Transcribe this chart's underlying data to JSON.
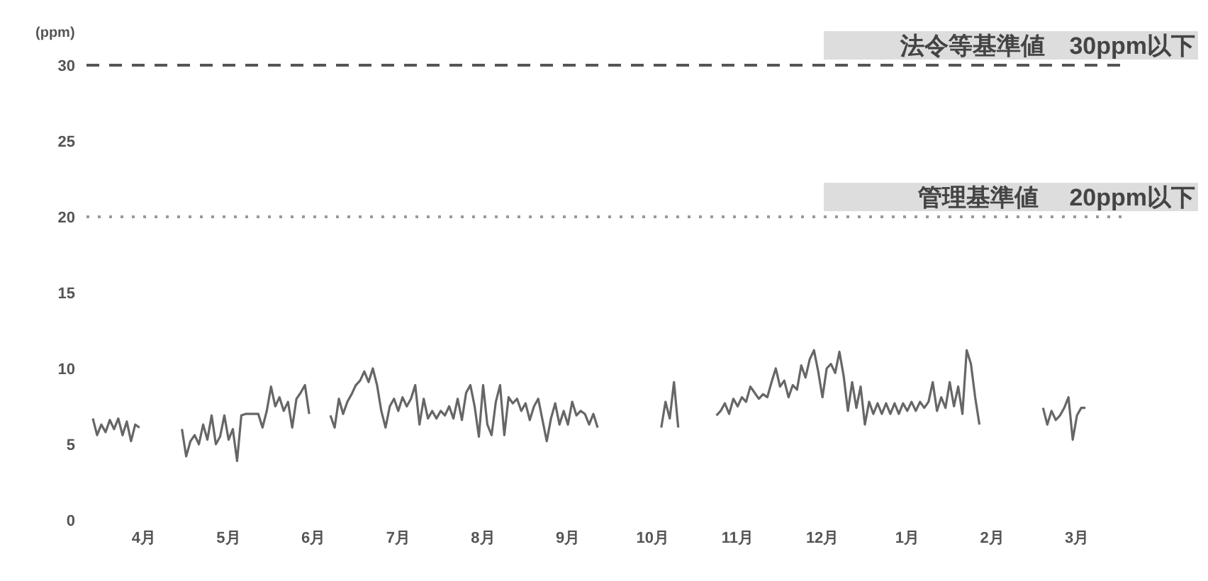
{
  "chart_data": {
    "type": "line",
    "ylabel": "(ppm)",
    "categories": [
      null,
      null,
      null,
      null,
      null,
      null,
      null,
      null,
      null,
      null,
      null,
      null,
      null,
      "4月",
      null,
      null,
      null,
      null,
      null,
      null,
      null,
      null,
      null,
      null,
      null,
      null,
      null,
      null,
      null,
      null,
      null,
      null,
      null,
      "5月",
      null,
      null,
      null,
      null,
      null,
      null,
      null,
      null,
      null,
      null,
      null,
      null,
      null,
      null,
      null,
      null,
      null,
      null,
      null,
      "6月",
      null,
      null,
      null,
      null,
      null,
      null,
      null,
      null,
      null,
      null,
      null,
      null,
      null,
      null,
      null,
      null,
      null,
      null,
      null,
      "7月",
      null,
      null,
      null,
      null,
      null,
      null,
      null,
      null,
      null,
      null,
      null,
      null,
      null,
      null,
      null,
      null,
      null,
      null,
      null,
      "8月",
      null,
      null,
      null,
      null,
      null,
      null,
      null,
      null,
      null,
      null,
      null,
      null,
      null,
      null,
      null,
      null,
      null,
      null,
      null,
      "9月",
      null,
      null,
      null,
      null,
      null,
      null,
      null,
      null,
      null,
      null,
      null,
      null,
      null,
      null,
      null,
      null,
      null,
      null,
      null,
      "10月",
      null,
      null,
      null,
      null,
      null,
      null,
      null,
      null,
      null,
      null,
      null,
      null,
      null,
      null,
      null,
      null,
      null,
      null,
      null,
      "11月",
      null,
      null,
      null,
      null,
      null,
      null,
      null,
      null,
      null,
      null,
      null,
      null,
      null,
      null,
      null,
      null,
      null,
      null,
      null,
      "12月",
      null,
      null,
      null,
      null,
      null,
      null,
      null,
      null,
      null,
      null,
      null,
      null,
      null,
      null,
      null,
      null,
      null,
      null,
      null,
      "1月",
      null,
      null,
      null,
      null,
      null,
      null,
      null,
      null,
      null,
      null,
      null,
      null,
      null,
      null,
      null,
      null,
      null,
      null,
      null,
      "2月",
      null,
      null,
      null,
      null,
      null,
      null,
      null,
      null,
      null,
      null,
      null,
      null,
      null,
      null,
      null,
      null,
      null,
      null,
      null,
      "3月",
      null,
      null,
      null,
      null,
      null,
      null,
      null,
      null,
      null,
      null
    ],
    "series": [
      {
        "color": "#666666",
        "values": [
          null,
          6.7,
          5.6,
          6.3,
          5.8,
          6.6,
          6.0,
          6.7,
          5.6,
          6.5,
          5.2,
          6.3,
          6.1,
          null,
          null,
          null,
          null,
          null,
          null,
          null,
          null,
          null,
          6.0,
          4.2,
          5.2,
          5.6,
          5.0,
          6.3,
          5.3,
          6.9,
          5.0,
          5.5,
          6.9,
          5.3,
          6.0,
          3.9,
          6.9,
          7.0,
          7.0,
          7.0,
          7.0,
          6.1,
          7.2,
          8.8,
          7.5,
          8.1,
          7.2,
          7.8,
          6.1,
          8.0,
          8.4,
          8.9,
          7.0,
          null,
          null,
          null,
          null,
          6.9,
          6.1,
          8.0,
          7.0,
          7.8,
          8.3,
          8.9,
          9.2,
          9.8,
          9.1,
          10.0,
          8.9,
          7.2,
          6.1,
          7.5,
          8.0,
          7.2,
          8.1,
          7.5,
          8.0,
          8.9,
          6.3,
          8.0,
          6.7,
          7.2,
          6.7,
          7.2,
          6.9,
          7.5,
          6.7,
          8.0,
          6.6,
          8.4,
          8.9,
          7.5,
          5.5,
          8.9,
          6.3,
          5.6,
          7.8,
          8.9,
          5.6,
          8.1,
          7.7,
          8.0,
          7.2,
          7.7,
          6.6,
          7.5,
          8.0,
          6.6,
          5.2,
          6.7,
          7.7,
          6.3,
          7.2,
          6.3,
          7.8,
          6.9,
          7.2,
          7.0,
          6.3,
          7.0,
          6.1,
          null,
          null,
          null,
          null,
          null,
          null,
          null,
          null,
          null,
          null,
          null,
          null,
          null,
          null,
          6.1,
          7.8,
          6.7,
          9.1,
          6.1,
          null,
          null,
          null,
          null,
          null,
          null,
          null,
          null,
          6.9,
          7.2,
          7.7,
          7.0,
          8.0,
          7.5,
          8.1,
          7.8,
          8.8,
          8.4,
          8.0,
          8.3,
          8.1,
          9.1,
          10.0,
          8.8,
          9.2,
          8.1,
          8.9,
          8.6,
          10.2,
          9.4,
          10.6,
          11.2,
          9.8,
          8.1,
          10.0,
          10.3,
          9.7,
          11.1,
          9.5,
          7.2,
          9.1,
          7.4,
          8.8,
          6.3,
          7.8,
          7.0,
          7.7,
          7.0,
          7.7,
          7.0,
          7.7,
          7.0,
          7.7,
          7.2,
          7.8,
          7.2,
          7.8,
          7.4,
          7.8,
          9.1,
          7.2,
          8.1,
          7.4,
          9.1,
          7.5,
          8.8,
          7.0,
          11.2,
          10.3,
          8.1,
          6.3,
          null,
          null,
          null,
          null,
          null,
          null,
          null,
          null,
          null,
          null,
          null,
          null,
          null,
          null,
          7.4,
          6.3,
          7.2,
          6.6,
          6.9,
          7.4,
          8.1,
          5.3,
          6.9,
          7.4,
          7.4,
          null,
          null,
          null,
          null,
          null,
          null,
          null,
          null
        ]
      }
    ],
    "ylim": [
      0,
      30
    ],
    "yticks": [
      0,
      5,
      10,
      15,
      20,
      25,
      30
    ],
    "ref_lines": [
      {
        "axis": "y",
        "value": 30,
        "label": "法令等基準値　30ppm以下",
        "color": "#555555",
        "line_style": "dashed"
      },
      {
        "axis": "y",
        "value": 20,
        "label": "管理基準値　 20ppm以下",
        "color": "#999999",
        "line_style": "dotted"
      }
    ]
  }
}
